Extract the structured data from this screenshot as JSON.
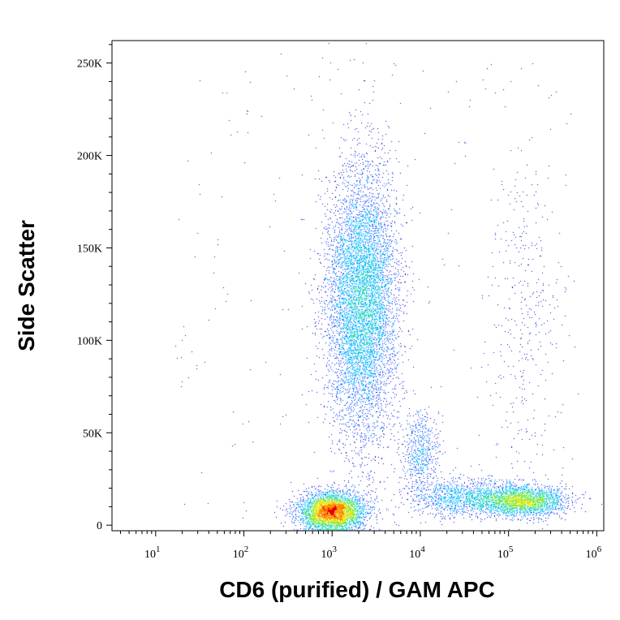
{
  "chart_data": {
    "type": "scatter",
    "xlabel": "CD6 (purified) / GAM APC",
    "ylabel": "Side Scatter",
    "x_scale": "log",
    "xlim": [
      3.2,
      1200000
    ],
    "ylim": [
      -3000,
      262144
    ],
    "x_ticks": [
      {
        "value": 10,
        "base": "10",
        "exp": "1"
      },
      {
        "value": 100,
        "base": "10",
        "exp": "2"
      },
      {
        "value": 1000,
        "base": "10",
        "exp": "3"
      },
      {
        "value": 10000,
        "base": "10",
        "exp": "4"
      },
      {
        "value": 100000,
        "base": "10",
        "exp": "5"
      },
      {
        "value": 1000000,
        "base": "10",
        "exp": "6"
      }
    ],
    "y_ticks": [
      {
        "value": 0,
        "label": "0"
      },
      {
        "value": 50000,
        "label": "50K"
      },
      {
        "value": 100000,
        "label": "100K"
      },
      {
        "value": 150000,
        "label": "150K"
      },
      {
        "value": 200000,
        "label": "200K"
      },
      {
        "value": 250000,
        "label": "250K"
      }
    ],
    "populations": [
      {
        "name": "",
        "center_x": 2200,
        "center_y": 120000,
        "spread_logx": 0.2,
        "spread_y": 36000,
        "count": 7500
      },
      {
        "name": "",
        "center_x": 1000,
        "center_y": 7000,
        "spread_logx": 0.18,
        "spread_y": 5000,
        "count": 4500
      },
      {
        "name": "",
        "center_x": 10000,
        "center_y": 40000,
        "spread_logx": 0.1,
        "spread_y": 11000,
        "count": 600
      },
      {
        "name": "",
        "center_x": 30000,
        "center_y": 15000,
        "spread_logx": 0.3,
        "spread_y": 5000,
        "count": 1200
      },
      {
        "name": "",
        "center_x": 140000,
        "center_y": 13000,
        "spread_logx": 0.25,
        "spread_y": 4000,
        "count": 2600
      },
      {
        "name": "",
        "center_x": 150000,
        "center_y": 110000,
        "spread_logx": 0.2,
        "spread_y": 45000,
        "count": 350
      }
    ],
    "density_colors": [
      "#0000c8",
      "#1e5aff",
      "#00b4ff",
      "#3cdcb4",
      "#8ceb3c",
      "#f0e614",
      "#ff8c00",
      "#e60000"
    ],
    "grid": false,
    "legend": "none"
  }
}
